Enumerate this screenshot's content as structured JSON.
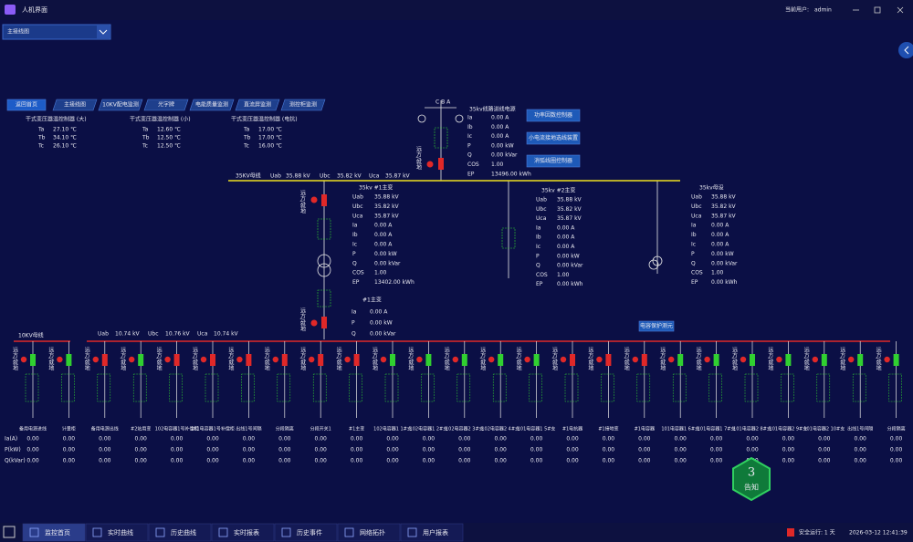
{
  "window": {
    "title": "人机界面",
    "user_label": "当前用户:",
    "user": "admin"
  },
  "view_select": "主接线图",
  "nav": [
    "返回首页",
    "主接线图",
    "10KV配电监测",
    "光字牌",
    "电能质量监测",
    "直流屏监测",
    "测控柜监测"
  ],
  "temp_controllers": [
    {
      "title": "干式变压器温控制器 (大)",
      "rows": [
        [
          "Ta",
          "27.10 ℃"
        ],
        [
          "Tb",
          "34.10 ℃"
        ],
        [
          "Tc",
          "26.10 ℃"
        ]
      ]
    },
    {
      "title": "干式变压器温控制器 (小)",
      "rows": [
        [
          "Ta",
          "12.60 ℃"
        ],
        [
          "Tb",
          "12.50 ℃"
        ],
        [
          "Tc",
          "12.50 ℃"
        ]
      ]
    },
    {
      "title": "干式变压器温控制器 (电抗)",
      "rows": [
        [
          "Ta",
          "17.00 ℃"
        ],
        [
          "Tb",
          "17.00 ℃"
        ],
        [
          "Tc",
          "16.00 ℃"
        ]
      ]
    }
  ],
  "phases": "C B A",
  "remote_local": "远方/就地",
  "incoming": {
    "title": "35kv线路进线电源",
    "rows": [
      [
        "Ia",
        "0.00 A"
      ],
      [
        "Ib",
        "0.00 A"
      ],
      [
        "Ic",
        "0.00 A"
      ],
      [
        "P",
        "0.00 kW"
      ],
      [
        "Q",
        "0.00 kVar"
      ],
      [
        "COS",
        "1.00"
      ],
      [
        "EP",
        "13496.00 kWh"
      ]
    ]
  },
  "device_buttons": [
    "功率因数控制器",
    "小电流接地选线装置",
    "消弧线圈控制器"
  ],
  "bus35": {
    "label": "35KV母线",
    "rows": [
      [
        "Uab",
        "35.88 kV"
      ],
      [
        "Ubc",
        "35.82 kV"
      ],
      [
        "Uca",
        "35.87 kV"
      ]
    ]
  },
  "transformer1": {
    "title": "35kv #1主变",
    "rows": [
      [
        "Uab",
        "35.88 kV"
      ],
      [
        "Ubc",
        "35.82 kV"
      ],
      [
        "Uca",
        "35.87 kV"
      ],
      [
        "Ia",
        "0.00 A"
      ],
      [
        "Ib",
        "0.00 A"
      ],
      [
        "Ic",
        "0.00 A"
      ],
      [
        "P",
        "0.00 kW"
      ],
      [
        "Q",
        "0.00 kVar"
      ],
      [
        "COS",
        "1.00"
      ],
      [
        "EP",
        "13402.00 kWh"
      ]
    ]
  },
  "transformer2": {
    "title": "35kv #2主变",
    "rows": [
      [
        "Uab",
        "35.88 kV"
      ],
      [
        "Ubc",
        "35.82 kV"
      ],
      [
        "Uca",
        "35.87 kV"
      ],
      [
        "Ia",
        "0.00 A"
      ],
      [
        "Ib",
        "0.00 A"
      ],
      [
        "Ic",
        "0.00 A"
      ],
      [
        "P",
        "0.00 kW"
      ],
      [
        "Q",
        "0.00 kVar"
      ],
      [
        "COS",
        "1.00"
      ],
      [
        "EP",
        "0.00 kWh"
      ]
    ]
  },
  "pt35": {
    "title": "35kv母设",
    "rows": [
      [
        "Uab",
        "35.88 kV"
      ],
      [
        "Ubc",
        "35.82 kV"
      ],
      [
        "Uca",
        "35.87 kV"
      ],
      [
        "Ia",
        "0.00 A"
      ],
      [
        "Ib",
        "0.00 A"
      ],
      [
        "Ic",
        "0.00 A"
      ],
      [
        "P",
        "0.00 kW"
      ],
      [
        "Q",
        "0.00 kVar"
      ],
      [
        "COS",
        "1.00"
      ],
      [
        "EP",
        "0.00 kWh"
      ]
    ]
  },
  "low_side": {
    "title": "#1主变",
    "rows": [
      [
        "Ia",
        "0.00 A"
      ],
      [
        "P",
        "0.00 kW"
      ],
      [
        "Q",
        "0.00 kVar"
      ]
    ]
  },
  "bus10": {
    "label": "10KV母线",
    "rows": [
      [
        "Uab",
        "10.74 kV"
      ],
      [
        "Ubc",
        "10.76 kV"
      ],
      [
        "Uca",
        "10.74 kV"
      ]
    ]
  },
  "protect_button": "电容保护测元",
  "feeder_labels": [
    "Ia(A)",
    "P(kW)",
    "Q(kVar)"
  ],
  "feeders": [
    {
      "name": "备用电源进线",
      "color": "#30d030",
      "values": [
        "0.00",
        "0.00",
        "0.00"
      ]
    },
    {
      "name": "计量柜",
      "color": "#30d030",
      "values": [
        "0.00",
        "0.00",
        "0.00"
      ]
    },
    {
      "name": "备用电源出线",
      "color": "#e02828",
      "values": [
        "0.00",
        "0.00",
        "0.00"
      ]
    },
    {
      "name": "#2站用变",
      "color": "#30d030",
      "values": [
        "0.00",
        "0.00",
        "0.00"
      ]
    },
    {
      "name": "102电容器1号补偿柜",
      "color": "#e02828",
      "values": [
        "0.00",
        "0.00",
        "0.00"
      ]
    },
    {
      "name": "101电容器1号补偿柜",
      "color": "#e02828",
      "values": [
        "0.00",
        "0.00",
        "0.00"
      ]
    },
    {
      "name": "出线1号间隔",
      "color": "#e02828",
      "values": [
        "0.00",
        "0.00",
        "0.00"
      ]
    },
    {
      "name": "分段隔离",
      "color": "#e02828",
      "values": [
        "0.00",
        "0.00",
        "0.00"
      ]
    },
    {
      "name": "分段开关1",
      "color": "#e02828",
      "values": [
        "0.00",
        "0.00",
        "0.00"
      ]
    },
    {
      "name": "#1主变",
      "color": "#e02828",
      "values": [
        "0.00",
        "0.00",
        "0.00"
      ]
    },
    {
      "name": "102电容器1 1#支",
      "color": "#30d030",
      "values": [
        "0.00",
        "0.00",
        "0.00"
      ]
    },
    {
      "name": "102电容器1 2#支",
      "color": "#30d030",
      "values": [
        "0.00",
        "0.00",
        "0.00"
      ]
    },
    {
      "name": "102电容器2 3#支",
      "color": "#30d030",
      "values": [
        "0.00",
        "0.00",
        "0.00"
      ]
    },
    {
      "name": "102电容器2 4#支",
      "color": "#30d030",
      "values": [
        "0.00",
        "0.00",
        "0.00"
      ]
    },
    {
      "name": "101电容器1 5#支",
      "color": "#30d030",
      "values": [
        "0.00",
        "0.00",
        "0.00"
      ]
    },
    {
      "name": "#1电抗器",
      "color": "#e02828",
      "values": [
        "0.00",
        "0.00",
        "0.00"
      ]
    },
    {
      "name": "#1接地变",
      "color": "#e02828",
      "values": [
        "0.00",
        "0.00",
        "0.00"
      ]
    },
    {
      "name": "#1电容器",
      "color": "#e02828",
      "values": [
        "0.00",
        "0.00",
        "0.00"
      ]
    },
    {
      "name": "101电容器1 6#支",
      "color": "#30d030",
      "values": [
        "0.00",
        "0.00",
        "0.00"
      ]
    },
    {
      "name": "101电容器1 7#支",
      "color": "#30d030",
      "values": [
        "0.00",
        "0.00",
        "0.00"
      ]
    },
    {
      "name": "101电容器2 8#支",
      "color": "#30d030",
      "values": [
        "0.00",
        "0.00",
        "0.00"
      ]
    },
    {
      "name": "101电容器2 9#支",
      "color": "#30d030",
      "values": [
        "0.00",
        "0.00",
        "0.00"
      ]
    },
    {
      "name": "101电容器2 10#支",
      "color": "#30d030",
      "values": [
        "0.00",
        "0.00",
        "0.00"
      ]
    },
    {
      "name": "出线1号间隔",
      "color": "#30d030",
      "values": [
        "0.00",
        "0.00",
        "0.00"
      ]
    },
    {
      "name": "分段隔离",
      "color": "#30d030",
      "values": [
        "0.00",
        "0.00",
        "0.00"
      ]
    }
  ],
  "alarm": {
    "count": "3",
    "label": "告知"
  },
  "tabs": [
    "监控首页",
    "实时曲线",
    "历史曲线",
    "实时报表",
    "历史事件",
    "网络拓扑",
    "用户报表"
  ],
  "status": {
    "safe": "安全运行: 1 天",
    "time": "2026-03-12 12:41:39"
  }
}
